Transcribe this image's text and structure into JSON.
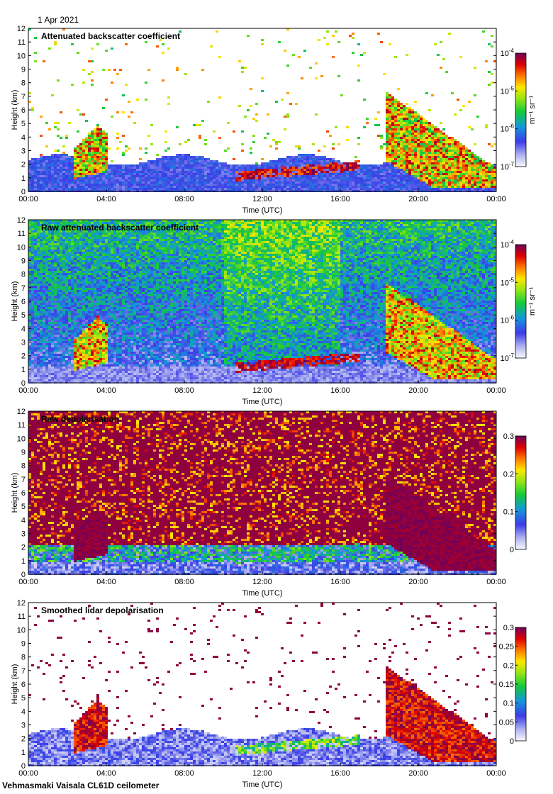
{
  "date_label": "1 Apr 2021",
  "footer": "Vehmasmaki Vaisala CL61D ceilometer",
  "chart_data": [
    {
      "type": "heatmap",
      "title": "Attenuated backscatter coefficient",
      "xlabel": "Time (UTC)",
      "ylabel": "Height (km)",
      "x_ticks": [
        "00:00",
        "04:00",
        "08:00",
        "12:00",
        "16:00",
        "20:00",
        "00:00"
      ],
      "y_ticks": [
        "0",
        "1",
        "2",
        "3",
        "4",
        "5",
        "6",
        "7",
        "8",
        "9",
        "10",
        "11",
        "12"
      ],
      "ylim": [
        0,
        12
      ],
      "colorbar": {
        "scale": "log",
        "ticks": [
          "10^-7",
          "10^-6",
          "10^-5",
          "10^-4"
        ],
        "unit": "m^-1 sr^-1"
      },
      "features": [
        {
          "kind": "boundary layer",
          "from_h": 0,
          "to_h": 24,
          "top_km": 2.4
        },
        {
          "kind": "cloud",
          "from_h": 2.2,
          "to_h": 4.0,
          "bottom_km": 1.0,
          "top_km": 5.0
        },
        {
          "kind": "cloud",
          "from_h": 18.0,
          "to_h": 24.0,
          "bottom_km": 0.3,
          "top_km": 7.5
        },
        {
          "kind": "layer",
          "from_h": 11.0,
          "to_h": 17.0,
          "height_km": 1.6
        }
      ]
    },
    {
      "type": "heatmap",
      "title": "Raw attenuated backscatter coefficient",
      "xlabel": "Time (UTC)",
      "ylabel": "Height (km)",
      "x_ticks": [
        "00:00",
        "04:00",
        "08:00",
        "12:00",
        "16:00",
        "20:00",
        "00:00"
      ],
      "y_ticks": [
        "0",
        "1",
        "2",
        "3",
        "4",
        "5",
        "6",
        "7",
        "8",
        "9",
        "10",
        "11",
        "12"
      ],
      "ylim": [
        0,
        12
      ],
      "colorbar": {
        "scale": "log",
        "ticks": [
          "10^-7",
          "10^-6",
          "10^-5",
          "10^-4"
        ],
        "unit": "m^-1 sr^-1"
      }
    },
    {
      "type": "heatmap",
      "title": "Raw depolarisation",
      "xlabel": "Time (UTC)",
      "ylabel": "Height (km)",
      "x_ticks": [
        "00:00",
        "04:00",
        "08:00",
        "12:00",
        "16:00",
        "20:00",
        "00:00"
      ],
      "y_ticks": [
        "0",
        "1",
        "2",
        "3",
        "4",
        "5",
        "6",
        "7",
        "8",
        "9",
        "10",
        "11",
        "12"
      ],
      "ylim": [
        0,
        12
      ],
      "colorbar": {
        "scale": "linear",
        "ticks": [
          "0",
          "0.1",
          "0.2",
          "0.3"
        ],
        "range": [
          0,
          0.3
        ]
      }
    },
    {
      "type": "heatmap",
      "title": "Smoothed lidar depolarisation",
      "xlabel": "Time (UTC)",
      "ylabel": "Height (km)",
      "x_ticks": [
        "00:00",
        "04:00",
        "08:00",
        "12:00",
        "16:00",
        "20:00",
        "00:00"
      ],
      "y_ticks": [
        "0",
        "1",
        "2",
        "3",
        "4",
        "5",
        "6",
        "7",
        "8",
        "9",
        "10",
        "11",
        "12"
      ],
      "ylim": [
        0,
        12
      ],
      "colorbar": {
        "scale": "linear",
        "ticks": [
          "0",
          "0.05",
          "0.1",
          "0.15",
          "0.2",
          "0.25",
          "0.3"
        ],
        "range": [
          0,
          0.3
        ]
      }
    }
  ]
}
